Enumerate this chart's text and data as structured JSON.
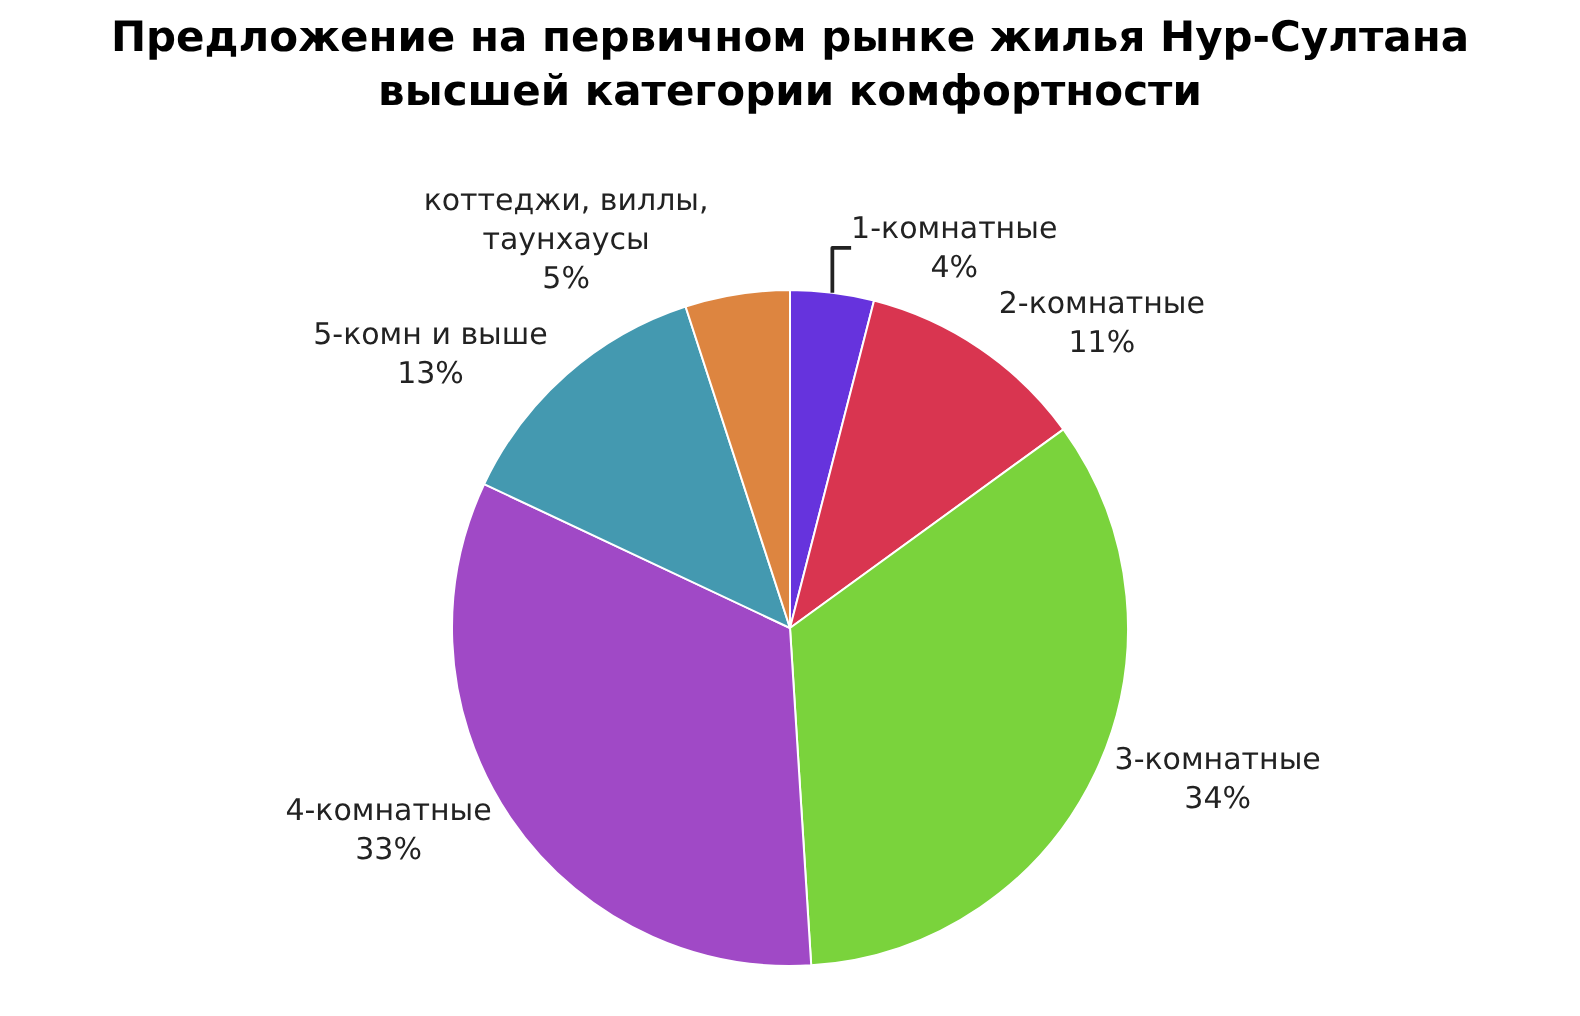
{
  "chart_data": {
    "type": "pie",
    "title": "Предложение на первичном рынке жилья Нур-Султана\nвысшей категории комфортности",
    "categories": [
      "1-комнатные",
      "2-комнатные",
      "3-комнатные",
      "4-комнатные",
      "5-комн и выше",
      "коттеджи, виллы,\nтаунхаусы"
    ],
    "values": [
      4,
      11,
      34,
      33,
      13,
      5
    ],
    "value_labels": [
      "4%",
      "11%",
      "34%",
      "33%",
      "13%",
      "5%"
    ],
    "colors": [
      "#6633dd",
      "#d93550",
      "#7ad33c",
      "#a049c6",
      "#4499b0",
      "#dd8540"
    ],
    "legend": false
  }
}
